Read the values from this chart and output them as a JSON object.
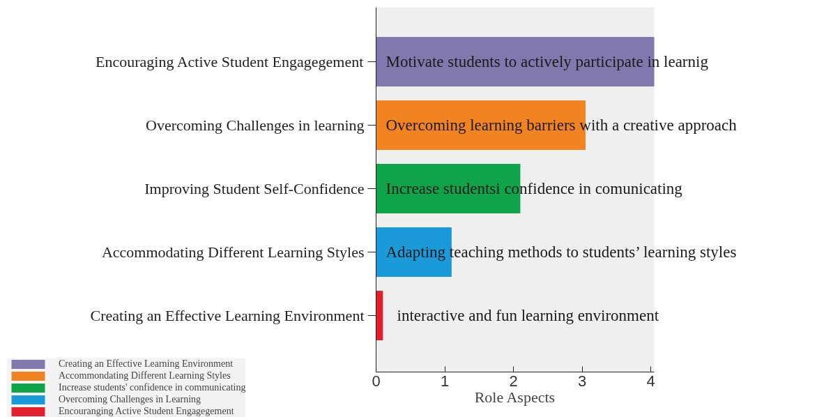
{
  "chart_data": {
    "type": "bar",
    "orientation": "horizontal",
    "xlabel": "Role Aspects",
    "categories": [
      "Encouraging Active Student Engagegement",
      "Overcoming Challenges in learning",
      "Improving Student Self-Confidence",
      "Accommodating Different Learning Styles",
      "Creating an Effective Learning Environment"
    ],
    "series": [
      {
        "name": "Creating an Effective Learning Environment",
        "color": "#8179ad",
        "values": [
          4.05,
          null,
          null,
          null,
          null
        ]
      },
      {
        "name": "Accommondating Different Learning Styles",
        "color": "#f28321",
        "values": [
          null,
          3.05,
          null,
          null,
          null
        ]
      },
      {
        "name": "Increase students' confidence in communicating",
        "color": "#0fa34a",
        "values": [
          null,
          null,
          2.1,
          null,
          null
        ]
      },
      {
        "name": "Overcoming Challenges in Learning",
        "color": "#1b9ad9",
        "values": [
          null,
          null,
          null,
          1.1,
          null
        ]
      },
      {
        "name": "Encouranging Active Student Engagegement",
        "color": "#e3202b",
        "values": [
          null,
          null,
          null,
          null,
          0.1
        ]
      }
    ],
    "annotations": [
      "Motivate students to actively participate in learnig",
      "Overcoming learning barriers with a creative approach",
      "Increase studentsi confidence in comunicating",
      "Adapting teaching methods to students’ learning styles",
      "interactive and fun learning environment"
    ],
    "xlim": [
      0,
      4.05
    ],
    "xticks": [
      0,
      1,
      2,
      3,
      4
    ],
    "grid": false,
    "legend": "bottom left"
  }
}
